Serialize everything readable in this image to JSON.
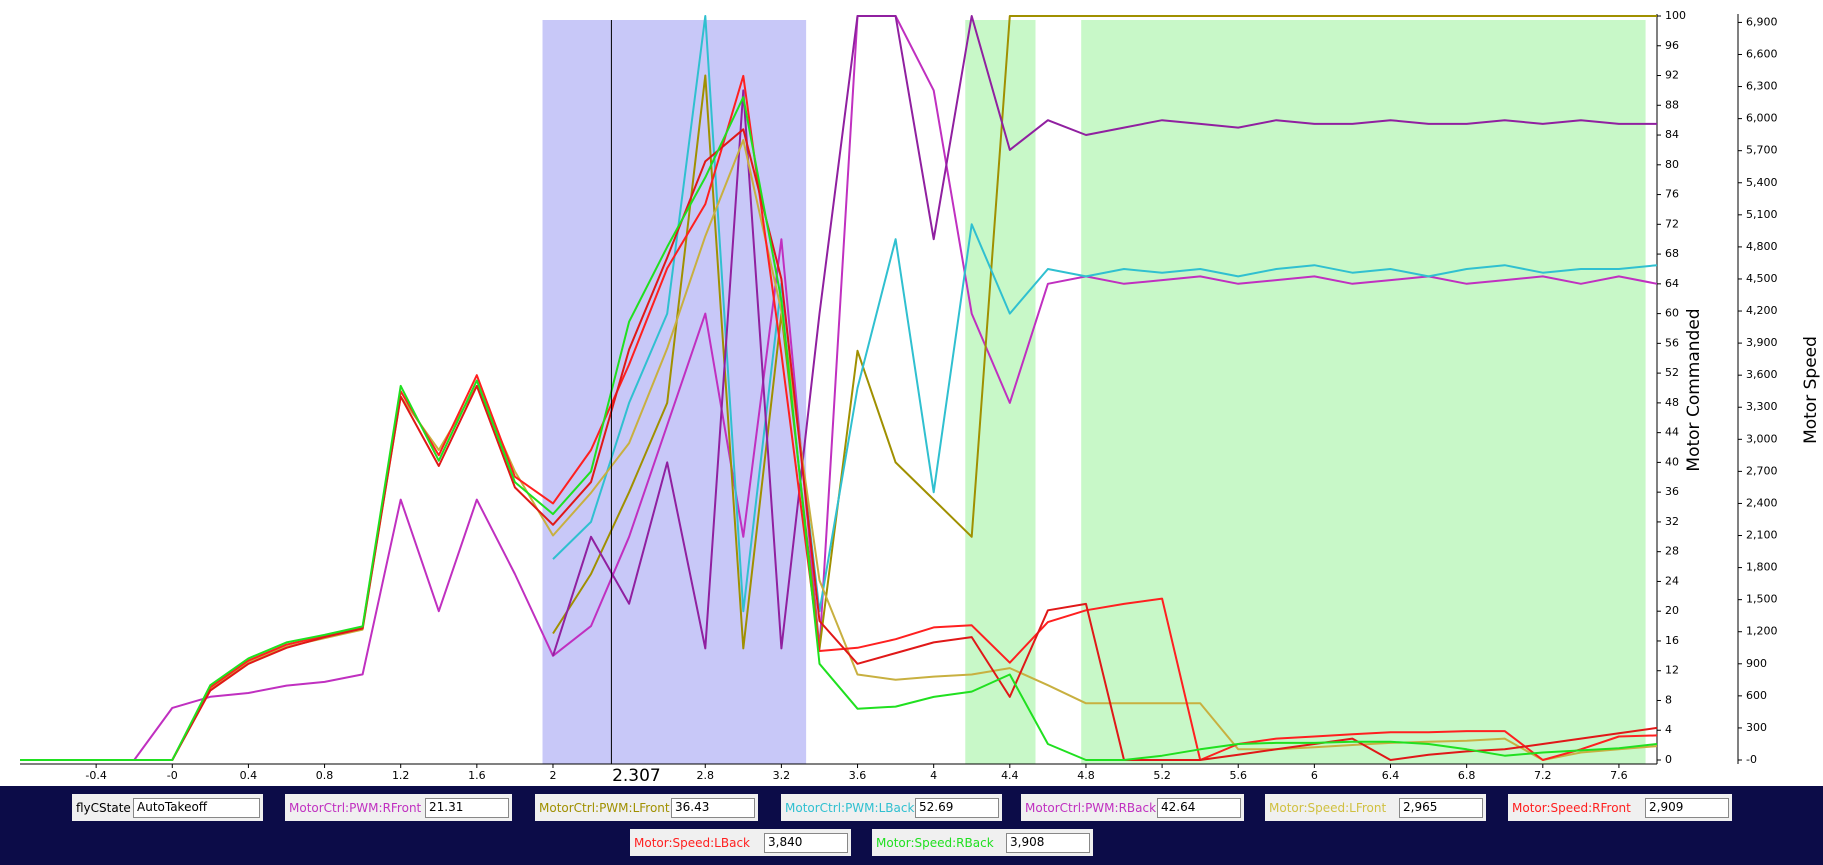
{
  "chart_data": {
    "type": "line",
    "y_label": "Motor Commanded",
    "y2_label": "Motor Speed",
    "xlim": [
      -0.8,
      7.8
    ],
    "xticks": [
      -0.4,
      {
        "value": 0,
        "label": "-0"
      },
      0.4,
      0.8,
      1.2,
      1.6,
      2,
      2.8,
      3.2,
      3.6,
      4,
      4.4,
      4.8,
      5.2,
      5.6,
      6,
      6.4,
      6.8,
      7.2,
      7.6
    ],
    "ylim": [
      0,
      100
    ],
    "yticks": [
      0,
      4,
      8,
      12,
      16,
      20,
      24,
      28,
      32,
      36,
      40,
      44,
      48,
      52,
      56,
      60,
      64,
      68,
      72,
      76,
      80,
      84,
      88,
      92,
      96,
      100
    ],
    "y2lim": [
      0,
      6960
    ],
    "y2ticks": [
      {
        "value": 0,
        "label": "-0"
      },
      300,
      600,
      900,
      {
        "value": 1200,
        "label": "1,200"
      },
      {
        "value": 1500,
        "label": "1,500"
      },
      {
        "value": 1800,
        "label": "1,800"
      },
      {
        "value": 2100,
        "label": "2,100"
      },
      {
        "value": 2400,
        "label": "2,400"
      },
      {
        "value": 2700,
        "label": "2,700"
      },
      {
        "value": 3000,
        "label": "3,000"
      },
      {
        "value": 3300,
        "label": "3,300"
      },
      {
        "value": 3600,
        "label": "3,600"
      },
      {
        "value": 3900,
        "label": "3,900"
      },
      {
        "value": 4200,
        "label": "4,200"
      },
      {
        "value": 4500,
        "label": "4,500"
      },
      {
        "value": 4800,
        "label": "4,800"
      },
      {
        "value": 5100,
        "label": "5,100"
      },
      {
        "value": 5400,
        "label": "5,400"
      },
      {
        "value": 5700,
        "label": "5,700"
      },
      {
        "value": 6000,
        "label": "6,000"
      },
      {
        "value": 6300,
        "label": "6,300"
      },
      {
        "value": 6600,
        "label": "6,600"
      },
      {
        "value": 6900,
        "label": "6,900"
      }
    ],
    "regions": [
      {
        "x": [
          1.945,
          3.33
        ],
        "color": "#c8c8f8"
      },
      {
        "x": [
          4.166,
          4.535
        ],
        "color": "#c8f8c8"
      },
      {
        "x": [
          4.775,
          7.74
        ],
        "color": "#c8f8c8"
      }
    ],
    "cursor_x": 2.307,
    "x": [
      -0.8,
      -0.6,
      -0.4,
      -0.2,
      0,
      0.2,
      0.4,
      0.6,
      0.8,
      1.0,
      1.2,
      1.4,
      1.6,
      1.8,
      2.0,
      2.2,
      2.4,
      2.6,
      2.8,
      3.0,
      3.2,
      3.4,
      3.6,
      3.8,
      4.0,
      4.2,
      4.4,
      4.6,
      4.8,
      5.0,
      5.2,
      5.4,
      5.6,
      5.8,
      6.0,
      6.2,
      6.4,
      6.6,
      6.8,
      7.0,
      7.2,
      7.4,
      7.6,
      7.8
    ],
    "series": [
      {
        "name": "MotorCtrl:PWM:RFront",
        "color": "#c030c0",
        "values": [
          0,
          0,
          0,
          0,
          7,
          8.5,
          9,
          10,
          10.5,
          11.5,
          35,
          20,
          35,
          25,
          14,
          18,
          30,
          45,
          60,
          30,
          70,
          15,
          100,
          100,
          90,
          60,
          48,
          64,
          65,
          64,
          64.5,
          65,
          64,
          64.5,
          65,
          64,
          64.5,
          65,
          64,
          64.5,
          65,
          64,
          65,
          64
        ]
      },
      {
        "name": "MotorCtrl:PWM:LFront",
        "color": "#a09000",
        "values": [
          0,
          0,
          0,
          0,
          0,
          null,
          null,
          null,
          null,
          null,
          null,
          null,
          null,
          null,
          17,
          25,
          36,
          48,
          92,
          15,
          60,
          15,
          55,
          40,
          35,
          30,
          100,
          100,
          100,
          100,
          100,
          100,
          100,
          100,
          100,
          100,
          100,
          100,
          100,
          100,
          100,
          100,
          100,
          100
        ]
      },
      {
        "name": "MotorCtrl:PWM:LBack",
        "color": "#30c0d0",
        "values": [
          0,
          0,
          0,
          0,
          0,
          null,
          null,
          null,
          null,
          null,
          null,
          null,
          null,
          null,
          27,
          32,
          48,
          60,
          100,
          20,
          64,
          20,
          50,
          70,
          36,
          72,
          60,
          66,
          65,
          66,
          65.5,
          66,
          65,
          66,
          66.5,
          65.5,
          66,
          65,
          66,
          66.5,
          65.5,
          66,
          66,
          66.5
        ]
      },
      {
        "name": "MotorCtrl:PWM:RBack",
        "color": "#9020a0",
        "values": [
          0,
          0,
          0,
          0,
          0,
          null,
          null,
          null,
          null,
          null,
          null,
          null,
          null,
          null,
          14,
          30,
          21,
          40,
          15,
          90,
          15,
          60,
          100,
          100,
          70,
          100,
          82,
          86,
          84,
          85,
          86,
          85.5,
          85,
          86,
          85.5,
          85.5,
          86,
          85.5,
          85.5,
          86,
          85.5,
          86,
          85.5,
          85.5
        ]
      },
      {
        "name": "Motor:Speed:LFront",
        "color": "#c8b040",
        "axis": "y2",
        "values": [
          0,
          0,
          0,
          0,
          0,
          660,
          920,
          1060,
          1140,
          1220,
          3400,
          2900,
          3500,
          2700,
          2100,
          2500,
          2965,
          3850,
          4900,
          5800,
          4200,
          1680,
          800,
          750,
          780,
          800,
          860,
          700,
          530,
          530,
          530,
          530,
          100,
          100,
          120,
          140,
          160,
          170,
          180,
          200,
          0,
          70,
          100,
          130
        ]
      },
      {
        "name": "Motor:Speed:RFront",
        "color": "#ff2020",
        "axis": "y2",
        "values": [
          0,
          0,
          0,
          0,
          0,
          680,
          930,
          1080,
          1160,
          1240,
          3450,
          2850,
          3600,
          2650,
          2400,
          2900,
          3700,
          4600,
          5200,
          6400,
          3800,
          1020,
          1050,
          1130,
          1240,
          1260,
          910,
          1290,
          1400,
          1460,
          1510,
          0,
          150,
          200,
          220,
          240,
          260,
          260,
          270,
          270,
          0,
          100,
          220,
          230
        ]
      },
      {
        "name": "Motor:Speed:LBack",
        "color": "#e01818",
        "axis": "y2",
        "values": [
          0,
          0,
          0,
          0,
          0,
          650,
          900,
          1050,
          1150,
          1230,
          3400,
          2750,
          3500,
          2550,
          2200,
          2600,
          3840,
          4700,
          5600,
          5900,
          4500,
          1300,
          900,
          1000,
          1100,
          1150,
          590,
          1400,
          1460,
          0,
          0,
          0,
          50,
          100,
          150,
          200,
          0,
          50,
          80,
          100,
          150,
          200,
          250,
          300
        ]
      },
      {
        "name": "Motor:Speed:RBack",
        "color": "#20e020",
        "axis": "y2",
        "values": [
          0,
          0,
          0,
          0,
          0,
          700,
          950,
          1100,
          1170,
          1250,
          3500,
          2800,
          3550,
          2600,
          2300,
          2700,
          4100,
          4800,
          5450,
          6200,
          4300,
          900,
          480,
          500,
          590,
          640,
          800,
          150,
          0,
          0,
          40,
          100,
          150,
          160,
          160,
          170,
          170,
          150,
          100,
          40,
          70,
          90,
          110,
          150
        ]
      }
    ]
  },
  "state_readout": {
    "label": "flyCState",
    "value": "AutoTakeoff"
  },
  "cursor_readouts": [
    "21.31",
    "36.43",
    "52.69",
    "42.64",
    "2,965",
    "2,909",
    "3,840",
    "3,908"
  ]
}
